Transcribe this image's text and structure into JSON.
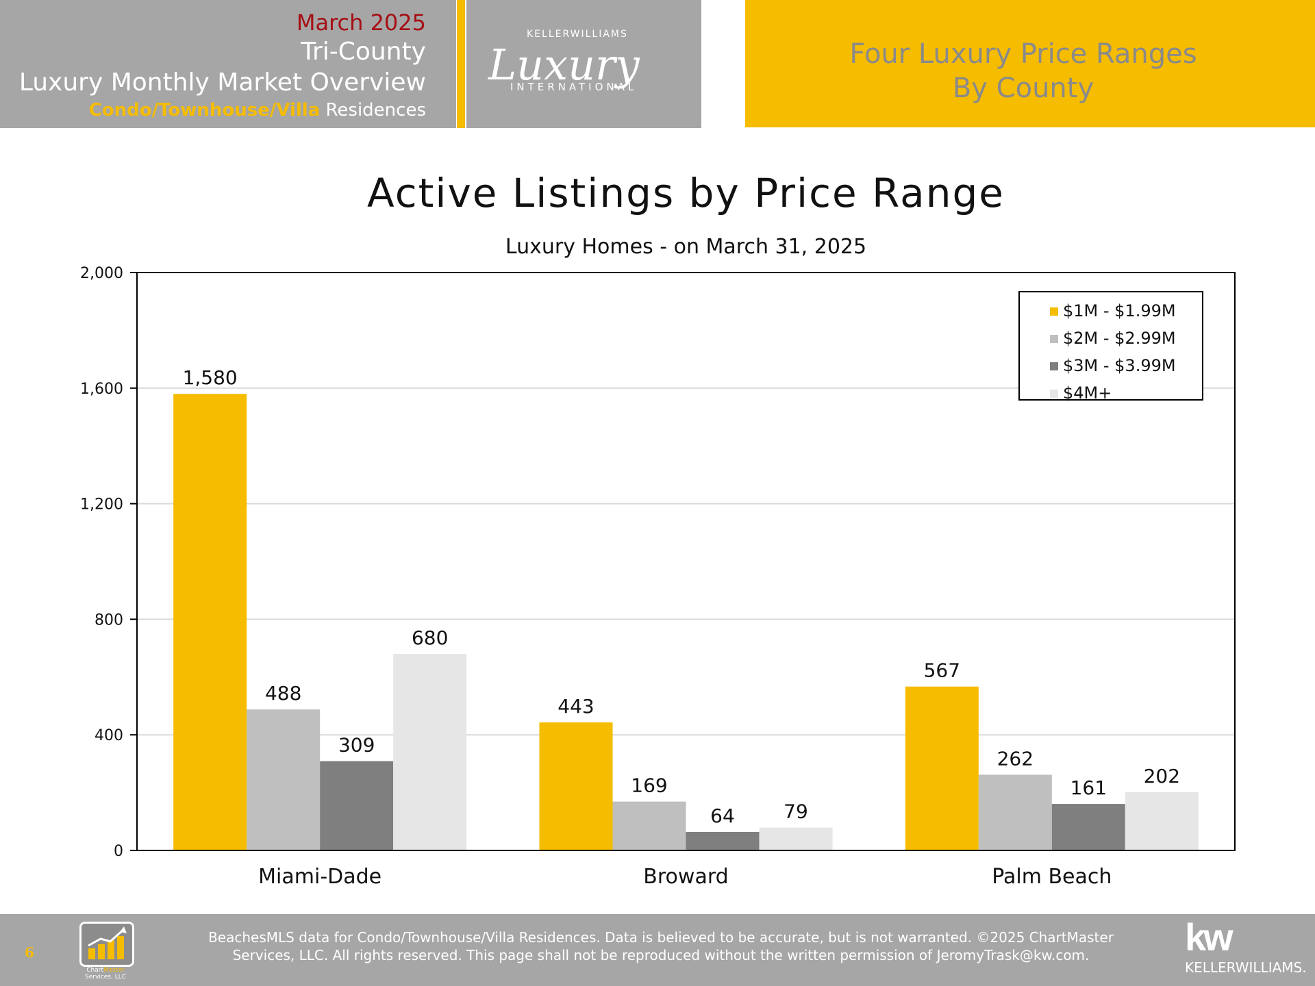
{
  "header": {
    "month": "March 2025",
    "region": "Tri-County",
    "overview": "Luxury Monthly Market Overview",
    "type_accent": "Condo/Townhouse/Villa",
    "type_rest": " Residences",
    "logo_top": "KELLERWILLIAMS",
    "logo_script": "Luxury",
    "logo_bottom": "INTERNATIONAL",
    "right_line1": "Four Luxury Price Ranges",
    "right_line2": "By County"
  },
  "colors": {
    "brand_yellow": "#f5bc00",
    "header_gray": "#a6a6a6",
    "series": [
      "#f5bc00",
      "#bfbfbf",
      "#7f7f7f",
      "#e6e6e6"
    ]
  },
  "chart_data": {
    "type": "bar",
    "title": "Active Listings by Price Range",
    "subtitle": "Luxury Homes - on March 31, 2025",
    "categories": [
      "Miami-Dade",
      "Broward",
      "Palm Beach"
    ],
    "series": [
      {
        "name": "$1M - $1.99M",
        "values": [
          1580,
          443,
          567
        ],
        "color": "#f5bc00"
      },
      {
        "name": "$2M - $2.99M",
        "values": [
          488,
          169,
          262
        ],
        "color": "#bfbfbf"
      },
      {
        "name": "$3M - $3.99M",
        "values": [
          309,
          64,
          161
        ],
        "color": "#7f7f7f"
      },
      {
        "name": "$4M+",
        "values": [
          680,
          79,
          202
        ],
        "color": "#e6e6e6"
      }
    ],
    "ylim": [
      0,
      2000
    ],
    "yticks": [
      0,
      400,
      800,
      1200,
      1600,
      2000
    ],
    "ytick_labels": [
      "0",
      "400",
      "800",
      "1,200",
      "1,600",
      "2,000"
    ],
    "value_labels": [
      [
        "1,580",
        "443",
        "567"
      ],
      [
        "488",
        "169",
        "262"
      ],
      [
        "309",
        "64",
        "161"
      ],
      [
        "680",
        "79",
        "202"
      ]
    ],
    "grid": true,
    "legend": "top-right"
  },
  "footer": {
    "page_number": "6",
    "logo_caption_a": "Chart",
    "logo_caption_b": "Master",
    "logo_caption_c": "Services, LLC",
    "disclaimer_line1": "BeachesMLS data for Condo/Townhouse/Villa Residences.  Data is believed to be accurate, but is not warranted.   ©2025  ChartMaster",
    "disclaimer_line2": "Services, LLC.  All rights reserved. This page shall not be reproduced without the written permission of JeromyTrask@kw.com.",
    "kw_mark": "kw",
    "kw_text": "KELLERWILLIAMS."
  }
}
